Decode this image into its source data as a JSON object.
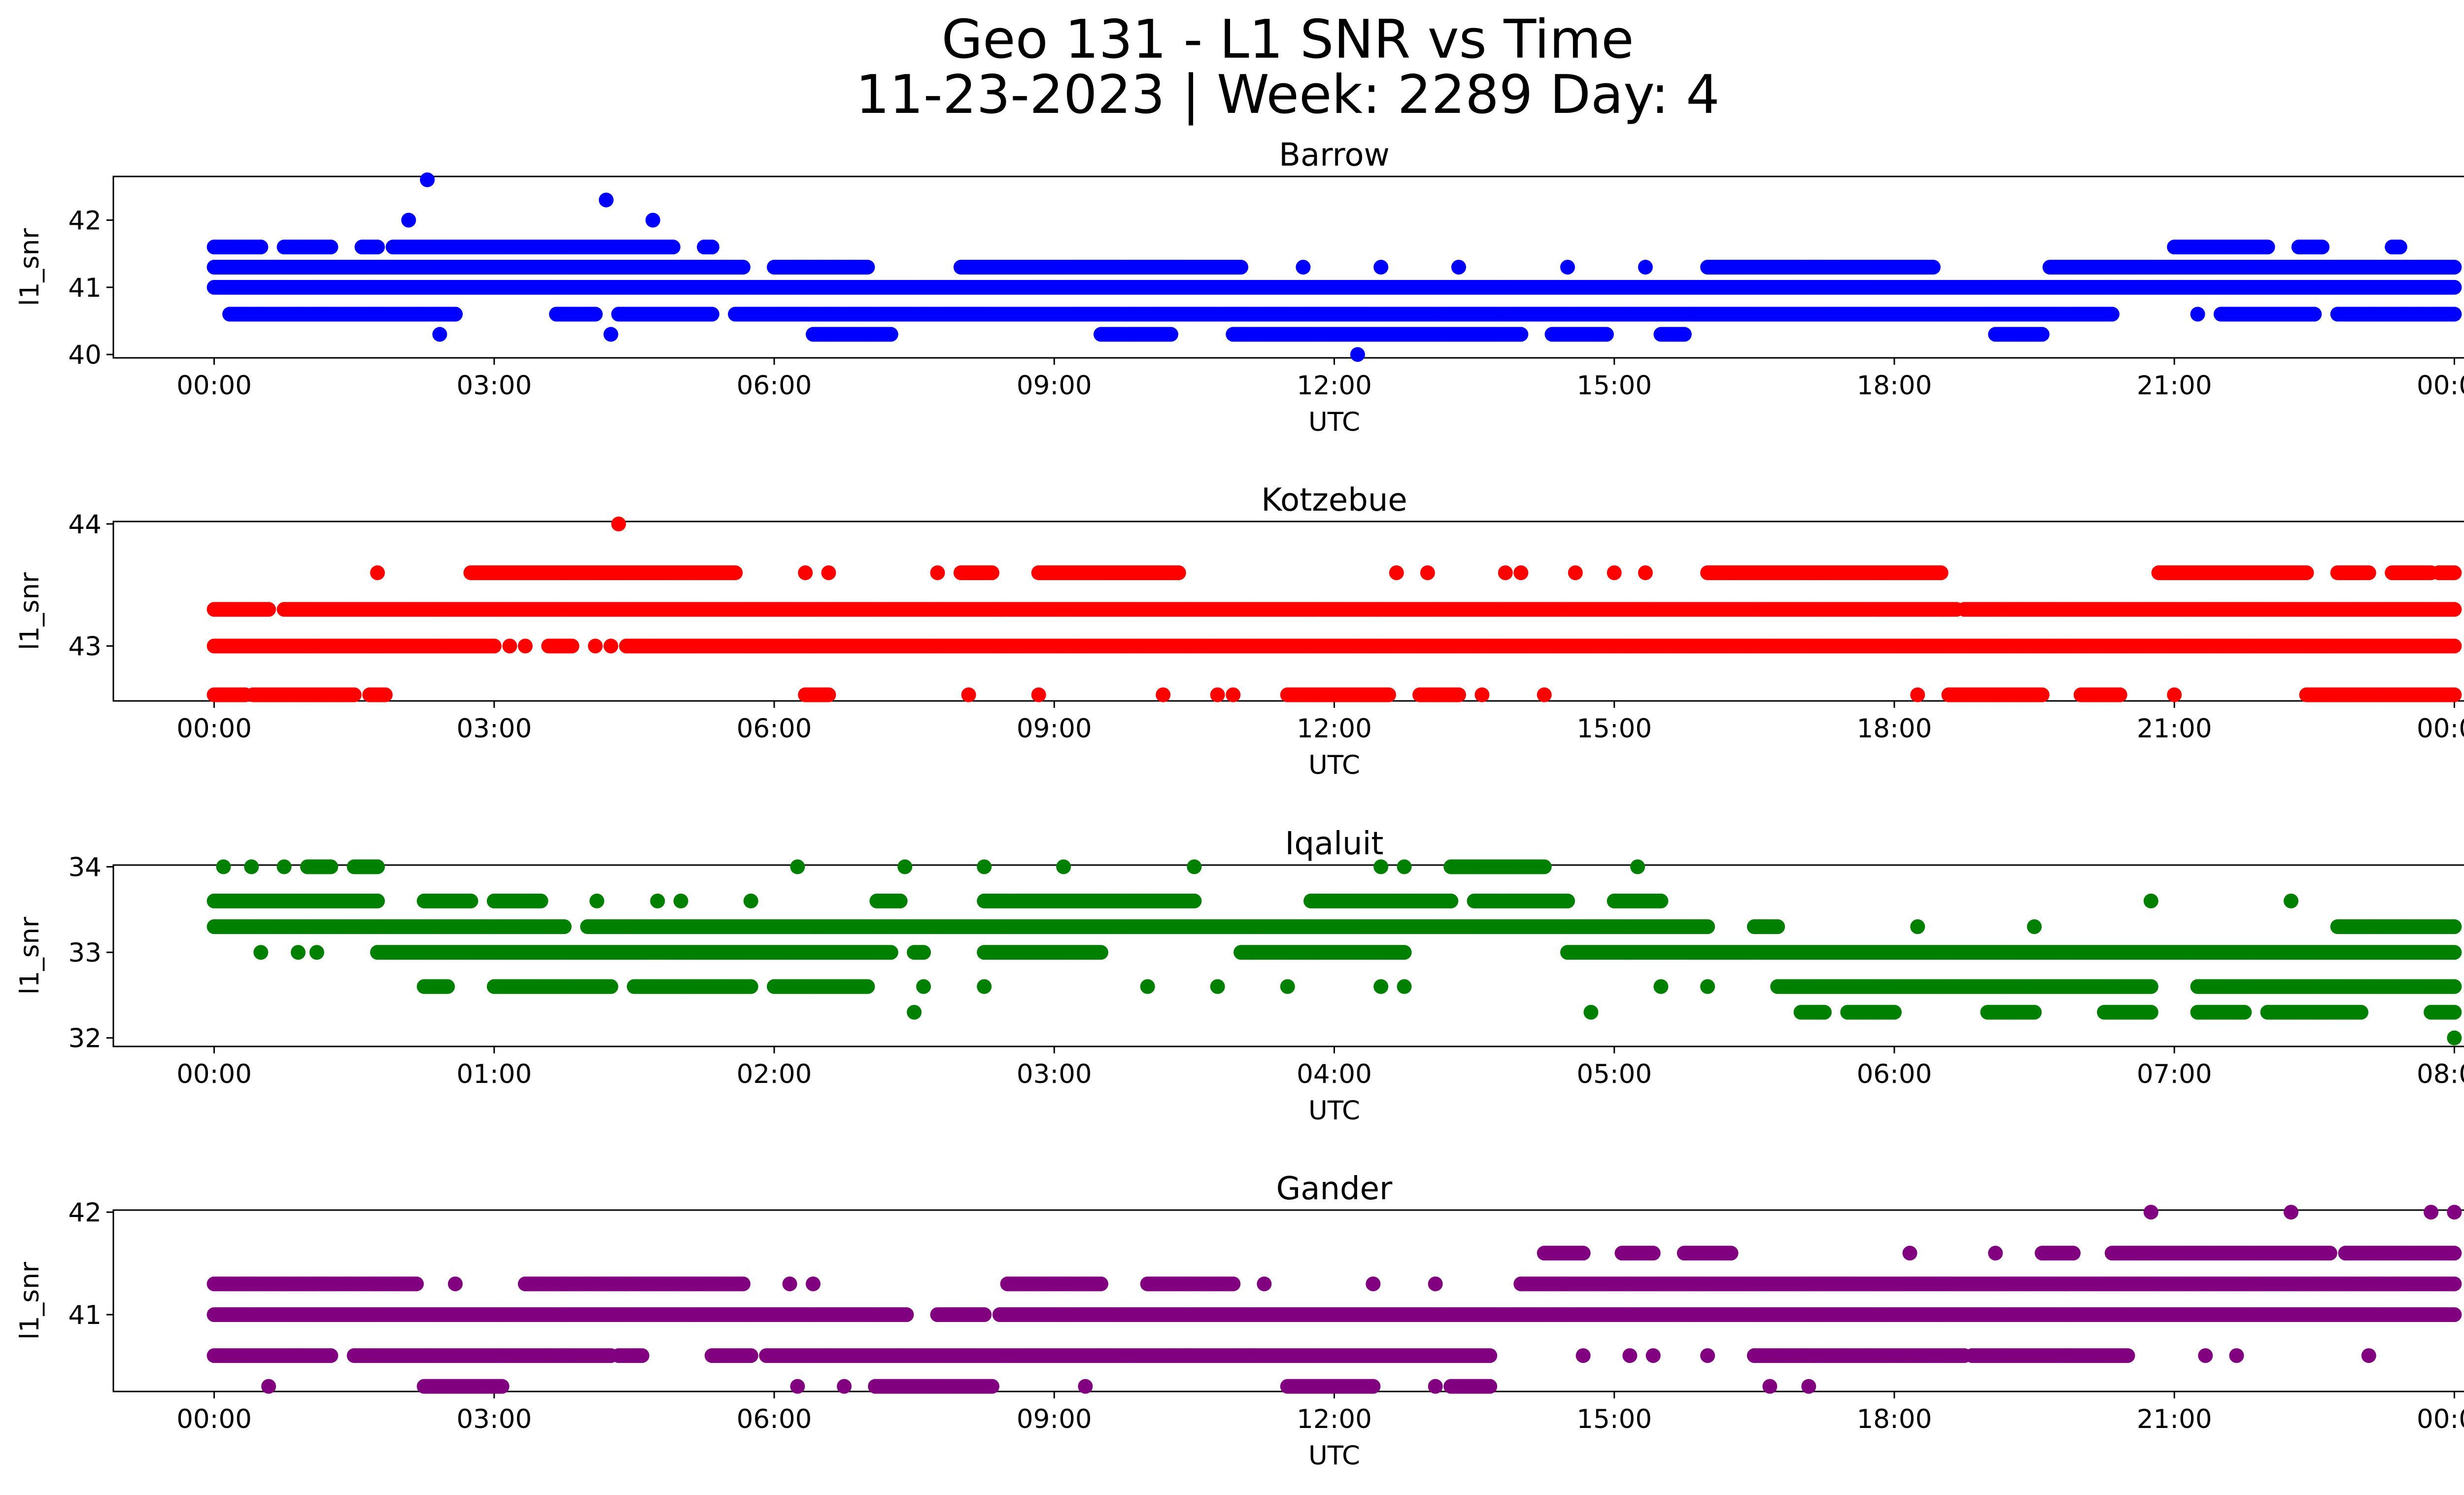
{
  "title_line1": "Geo 131 - L1 SNR vs Time",
  "title_line2": "11-23-2023 | Week: 2289 Day: 4",
  "chart_data": [
    {
      "type": "scatter",
      "title": "Barrow",
      "xlabel": "UTC",
      "ylabel": "l1_snr",
      "color": "#0000ff",
      "x_range": [
        "00:00",
        "24:00"
      ],
      "ylim": [
        39.95,
        42.65
      ],
      "xticks": [
        "00:00",
        "03:00",
        "06:00",
        "09:00",
        "12:00",
        "15:00",
        "18:00",
        "21:00",
        "00:00"
      ],
      "yticks": [
        "40",
        "41",
        "42"
      ],
      "levels": [
        {
          "y": 41.0,
          "runs": [
            [
              "00:00",
              "24:00"
            ]
          ]
        },
        {
          "y": 40.6,
          "runs": [
            [
              "00:10",
              "02:35"
            ],
            [
              "03:40",
              "04:05"
            ],
            [
              "04:20",
              "05:20"
            ],
            [
              "05:35",
              "20:20"
            ],
            [
              "21:30",
              "22:30"
            ],
            [
              "22:45",
              "24:00"
            ]
          ]
        },
        {
          "y": 41.3,
          "runs": [
            [
              "00:00",
              "05:40"
            ],
            [
              "06:00",
              "07:00"
            ],
            [
              "08:00",
              "11:00"
            ],
            [
              "16:00",
              "18:25"
            ],
            [
              "19:40",
              "24:00"
            ]
          ]
        },
        {
          "y": 41.6,
          "runs": [
            [
              "00:00",
              "00:30"
            ],
            [
              "00:45",
              "01:15"
            ],
            [
              "01:35",
              "01:45"
            ],
            [
              "01:55",
              "04:55"
            ],
            [
              "05:15",
              "05:20"
            ],
            [
              "21:00",
              "22:00"
            ],
            [
              "22:20",
              "22:35"
            ],
            [
              "23:20",
              "23:25"
            ]
          ]
        },
        {
          "y": 40.3,
          "runs": [
            [
              "06:25",
              "07:15"
            ],
            [
              "09:30",
              "10:15"
            ],
            [
              "10:55",
              "14:00"
            ],
            [
              "14:20",
              "14:55"
            ],
            [
              "15:30",
              "15:45"
            ],
            [
              "19:05",
              "19:35"
            ]
          ]
        }
      ],
      "points": [
        {
          "x": "02:17",
          "y": 42.6
        },
        {
          "x": "02:05",
          "y": 42.0
        },
        {
          "x": "04:12",
          "y": 42.3
        },
        {
          "x": "04:42",
          "y": 42.0
        },
        {
          "x": "12:15",
          "y": 40.0
        },
        {
          "x": "02:25",
          "y": 40.3
        },
        {
          "x": "04:15",
          "y": 40.3
        },
        {
          "x": "02:35",
          "y": 40.6
        },
        {
          "x": "21:15",
          "y": 40.6
        },
        {
          "x": "13:20",
          "y": 41.3
        },
        {
          "x": "14:30",
          "y": 41.3
        },
        {
          "x": "15:20",
          "y": 41.3
        },
        {
          "x": "11:40",
          "y": 41.3
        },
        {
          "x": "12:30",
          "y": 41.3
        }
      ]
    },
    {
      "type": "scatter",
      "title": "Kotzebue",
      "xlabel": "UTC",
      "ylabel": "l1_snr",
      "color": "#ff0000",
      "x_range": [
        "00:00",
        "24:00"
      ],
      "ylim": [
        42.55,
        44.02
      ],
      "xticks": [
        "00:00",
        "03:00",
        "06:00",
        "09:00",
        "12:00",
        "15:00",
        "18:00",
        "21:00",
        "00:00"
      ],
      "yticks": [
        "43",
        "44"
      ],
      "levels": [
        {
          "y": 43.0,
          "runs": [
            [
              "00:00",
              "03:00"
            ],
            [
              "03:35",
              "03:50"
            ],
            [
              "04:25",
              "24:00"
            ]
          ]
        },
        {
          "y": 43.3,
          "runs": [
            [
              "00:00",
              "00:35"
            ],
            [
              "00:45",
              "18:40"
            ],
            [
              "18:45",
              "24:00"
            ]
          ]
        },
        {
          "y": 42.6,
          "runs": [
            [
              "00:00",
              "00:20"
            ],
            [
              "00:25",
              "01:30"
            ],
            [
              "01:40",
              "01:50"
            ],
            [
              "06:20",
              "06:35"
            ],
            [
              "11:30",
              "12:35"
            ],
            [
              "12:55",
              "13:20"
            ],
            [
              "18:35",
              "19:35"
            ],
            [
              "20:00",
              "20:25"
            ],
            [
              "22:25",
              "24:00"
            ]
          ]
        },
        {
          "y": 43.6,
          "runs": [
            [
              "02:45",
              "05:35"
            ],
            [
              "08:00",
              "08:20"
            ],
            [
              "08:50",
              "10:20"
            ],
            [
              "16:00",
              "18:30"
            ],
            [
              "20:50",
              "22:25"
            ],
            [
              "22:45",
              "23:05"
            ],
            [
              "23:20",
              "23:45"
            ],
            [
              "23:50",
              "24:00"
            ]
          ]
        }
      ],
      "points": [
        {
          "x": "04:20",
          "y": 44.0
        },
        {
          "x": "01:45",
          "y": 43.6
        },
        {
          "x": "06:20",
          "y": 43.6
        },
        {
          "x": "06:35",
          "y": 43.6
        },
        {
          "x": "07:45",
          "y": 43.6
        },
        {
          "x": "12:40",
          "y": 43.6
        },
        {
          "x": "13:00",
          "y": 43.6
        },
        {
          "x": "13:50",
          "y": 43.6
        },
        {
          "x": "14:00",
          "y": 43.6
        },
        {
          "x": "14:35",
          "y": 43.6
        },
        {
          "x": "15:00",
          "y": 43.6
        },
        {
          "x": "15:20",
          "y": 43.6
        },
        {
          "x": "03:10",
          "y": 43.0
        },
        {
          "x": "03:20",
          "y": 43.0
        },
        {
          "x": "04:05",
          "y": 43.0
        },
        {
          "x": "04:15",
          "y": 43.0
        },
        {
          "x": "08:05",
          "y": 42.6
        },
        {
          "x": "08:50",
          "y": 42.6
        },
        {
          "x": "10:10",
          "y": 42.6
        },
        {
          "x": "10:45",
          "y": 42.6
        },
        {
          "x": "10:55",
          "y": 42.6
        },
        {
          "x": "13:35",
          "y": 42.6
        },
        {
          "x": "14:15",
          "y": 42.6
        },
        {
          "x": "18:15",
          "y": 42.6
        },
        {
          "x": "21:00",
          "y": 42.6
        }
      ]
    },
    {
      "type": "scatter",
      "title": "Iqaluit",
      "xlabel": "UTC",
      "ylabel": "l1_snr",
      "color": "#008000",
      "x_range": [
        "00:00",
        "08:00"
      ],
      "ylim": [
        31.9,
        34.02
      ],
      "xticks": [
        "00:00",
        "01:00",
        "02:00",
        "03:00",
        "04:00",
        "05:00",
        "06:00",
        "07:00",
        "08:00"
      ],
      "yticks": [
        "32",
        "33",
        "34"
      ],
      "levels": [
        {
          "y": 33.3,
          "runs": [
            [
              "00:00",
              "01:15"
            ],
            [
              "01:20",
              "05:20"
            ],
            [
              "05:30",
              "05:35"
            ],
            [
              "07:35",
              "08:00"
            ]
          ]
        },
        {
          "y": 33.0,
          "runs": [
            [
              "00:35",
              "02:25"
            ],
            [
              "02:30",
              "02:32"
            ],
            [
              "02:45",
              "03:10"
            ],
            [
              "03:40",
              "04:15"
            ],
            [
              "04:50",
              "08:00"
            ]
          ]
        },
        {
          "y": 33.6,
          "runs": [
            [
              "00:00",
              "00:35"
            ],
            [
              "00:45",
              "00:55"
            ],
            [
              "01:00",
              "01:10"
            ],
            [
              "02:22",
              "02:27"
            ],
            [
              "02:45",
              "03:30"
            ],
            [
              "03:55",
              "04:25"
            ],
            [
              "04:30",
              "04:50"
            ],
            [
              "05:00",
              "05:10"
            ]
          ]
        },
        {
          "y": 32.6,
          "runs": [
            [
              "00:45",
              "00:50"
            ],
            [
              "01:00",
              "01:25"
            ],
            [
              "01:30",
              "01:40"
            ],
            [
              "01:40",
              "01:55"
            ],
            [
              "02:00",
              "02:20"
            ],
            [
              "05:35",
              "06:55"
            ],
            [
              "07:05",
              "08:00"
            ]
          ]
        },
        {
          "y": 34.0,
          "runs": [
            [
              "00:20",
              "00:25"
            ],
            [
              "00:30",
              "00:35"
            ],
            [
              "04:25",
              "04:45"
            ]
          ]
        },
        {
          "y": 32.3,
          "runs": [
            [
              "05:40",
              "05:45"
            ],
            [
              "05:50",
              "06:00"
            ],
            [
              "06:20",
              "06:30"
            ],
            [
              "06:45",
              "06:55"
            ],
            [
              "07:05",
              "07:15"
            ],
            [
              "07:20",
              "07:40"
            ],
            [
              "07:55",
              "08:00"
            ]
          ]
        }
      ],
      "points": [
        {
          "x": "00:02",
          "y": 34.0
        },
        {
          "x": "00:08",
          "y": 34.0
        },
        {
          "x": "00:15",
          "y": 34.0
        },
        {
          "x": "02:05",
          "y": 34.0
        },
        {
          "x": "02:28",
          "y": 34.0
        },
        {
          "x": "02:45",
          "y": 34.0
        },
        {
          "x": "03:02",
          "y": 34.0
        },
        {
          "x": "03:30",
          "y": 34.0
        },
        {
          "x": "04:10",
          "y": 34.0
        },
        {
          "x": "04:15",
          "y": 34.0
        },
        {
          "x": "05:05",
          "y": 34.0
        },
        {
          "x": "08:00",
          "y": 32.0
        },
        {
          "x": "02:30",
          "y": 32.3
        },
        {
          "x": "04:55",
          "y": 32.3
        },
        {
          "x": "00:10",
          "y": 33.0
        },
        {
          "x": "00:18",
          "y": 33.0
        },
        {
          "x": "00:22",
          "y": 33.0
        },
        {
          "x": "01:22",
          "y": 33.6
        },
        {
          "x": "01:35",
          "y": 33.6
        },
        {
          "x": "01:40",
          "y": 33.6
        },
        {
          "x": "01:55",
          "y": 33.6
        },
        {
          "x": "06:05",
          "y": 33.3
        },
        {
          "x": "06:30",
          "y": 33.3
        },
        {
          "x": "06:55",
          "y": 33.6
        },
        {
          "x": "07:25",
          "y": 33.6
        },
        {
          "x": "05:10",
          "y": 32.6
        },
        {
          "x": "05:20",
          "y": 32.6
        },
        {
          "x": "02:32",
          "y": 32.6
        },
        {
          "x": "02:45",
          "y": 32.6
        },
        {
          "x": "03:20",
          "y": 32.6
        },
        {
          "x": "03:35",
          "y": 32.6
        },
        {
          "x": "03:50",
          "y": 32.6
        },
        {
          "x": "04:10",
          "y": 32.6
        },
        {
          "x": "04:15",
          "y": 32.6
        }
      ]
    },
    {
      "type": "scatter",
      "title": "Gander",
      "xlabel": "UTC",
      "ylabel": "l1_snr",
      "color": "#800080",
      "x_range": [
        "00:00",
        "24:00"
      ],
      "ylim": [
        40.25,
        42.02
      ],
      "xticks": [
        "00:00",
        "03:00",
        "06:00",
        "09:00",
        "12:00",
        "15:00",
        "18:00",
        "21:00",
        "00:00"
      ],
      "yticks": [
        "41",
        "42"
      ],
      "levels": [
        {
          "y": 41.0,
          "runs": [
            [
              "00:00",
              "07:25"
            ],
            [
              "07:45",
              "08:15"
            ],
            [
              "08:25",
              "24:00"
            ]
          ]
        },
        {
          "y": 41.3,
          "runs": [
            [
              "00:00",
              "02:10"
            ],
            [
              "03:20",
              "05:40"
            ],
            [
              "08:30",
              "09:30"
            ],
            [
              "10:00",
              "10:55"
            ],
            [
              "14:00",
              "24:00"
            ]
          ]
        },
        {
          "y": 40.6,
          "runs": [
            [
              "00:00",
              "01:15"
            ],
            [
              "01:30",
              "04:15"
            ],
            [
              "04:20",
              "04:35"
            ],
            [
              "05:20",
              "05:45"
            ],
            [
              "05:55",
              "13:40"
            ],
            [
              "16:30",
              "18:45"
            ],
            [
              "18:50",
              "20:30"
            ]
          ]
        },
        {
          "y": 41.6,
          "runs": [
            [
              "14:15",
              "14:40"
            ],
            [
              "15:05",
              "15:25"
            ],
            [
              "15:45",
              "16:15"
            ],
            [
              "19:35",
              "19:55"
            ],
            [
              "20:20",
              "22:40"
            ],
            [
              "22:50",
              "24:00"
            ]
          ]
        },
        {
          "y": 40.3,
          "runs": [
            [
              "02:15",
              "03:05"
            ],
            [
              "07:05",
              "08:20"
            ],
            [
              "11:30",
              "12:25"
            ],
            [
              "13:15",
              "13:40"
            ]
          ]
        }
      ],
      "points": [
        {
          "x": "20:45",
          "y": 42.0
        },
        {
          "x": "22:15",
          "y": 42.0
        },
        {
          "x": "23:45",
          "y": 42.0
        },
        {
          "x": "24:00",
          "y": 42.0
        },
        {
          "x": "12:25",
          "y": 41.3
        },
        {
          "x": "13:05",
          "y": 41.3
        },
        {
          "x": "18:10",
          "y": 41.6
        },
        {
          "x": "19:05",
          "y": 41.6
        },
        {
          "x": "00:35",
          "y": 40.3
        },
        {
          "x": "06:15",
          "y": 40.3
        },
        {
          "x": "06:45",
          "y": 40.3
        },
        {
          "x": "09:20",
          "y": 40.3
        },
        {
          "x": "13:05",
          "y": 40.3
        },
        {
          "x": "16:40",
          "y": 40.3
        },
        {
          "x": "17:05",
          "y": 40.3
        },
        {
          "x": "23:05",
          "y": 40.6
        },
        {
          "x": "21:20",
          "y": 40.6
        },
        {
          "x": "21:40",
          "y": 40.6
        },
        {
          "x": "14:40",
          "y": 40.6
        },
        {
          "x": "15:10",
          "y": 40.6
        },
        {
          "x": "15:25",
          "y": 40.6
        },
        {
          "x": "16:00",
          "y": 40.6
        },
        {
          "x": "02:35",
          "y": 41.3
        },
        {
          "x": "06:10",
          "y": 41.3
        },
        {
          "x": "06:25",
          "y": 41.3
        },
        {
          "x": "11:15",
          "y": 41.3
        }
      ]
    }
  ]
}
